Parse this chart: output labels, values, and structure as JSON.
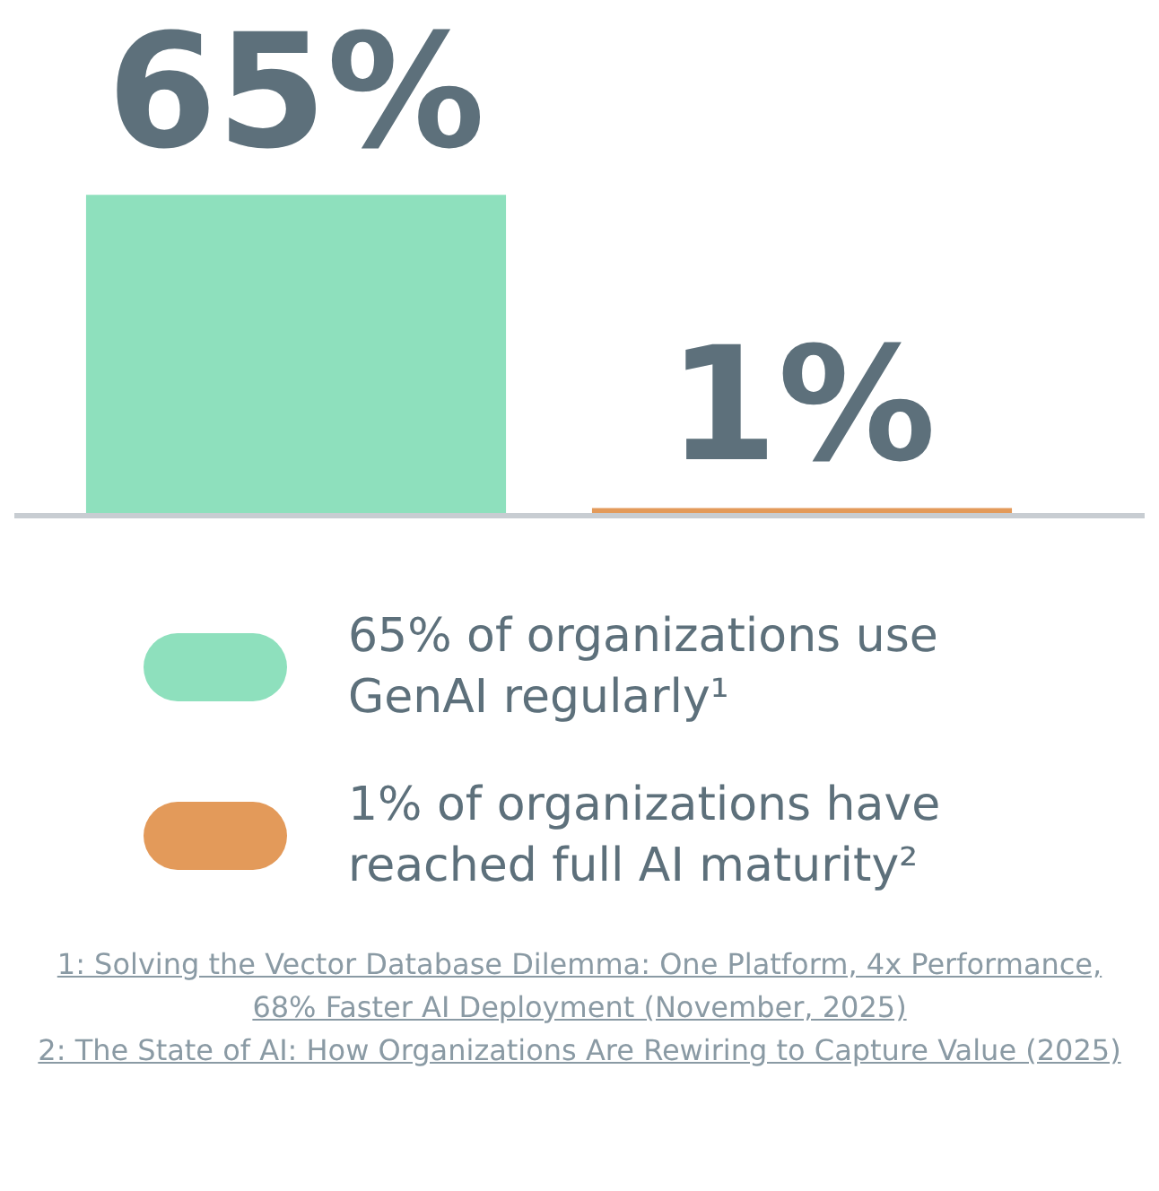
{
  "chart_data": {
    "type": "bar",
    "categories": [
      null,
      null
    ],
    "values": [
      65,
      1
    ],
    "colors": [
      "#8ee0bd",
      "#e39a5a"
    ],
    "value_labels": [
      "65%",
      "1%"
    ],
    "annotations": [
      "65% of organizations use GenAI regularly¹",
      "1% of organizations have reached full AI maturity²",
      "1: Solving the Vector Database Dilemma: One Platform, 4x Performance, 68% Faster AI Deployment (November, 2025)",
      "2: The State of AI: How Organizations Are Rewiring to Capture Value (2025)"
    ]
  }
}
